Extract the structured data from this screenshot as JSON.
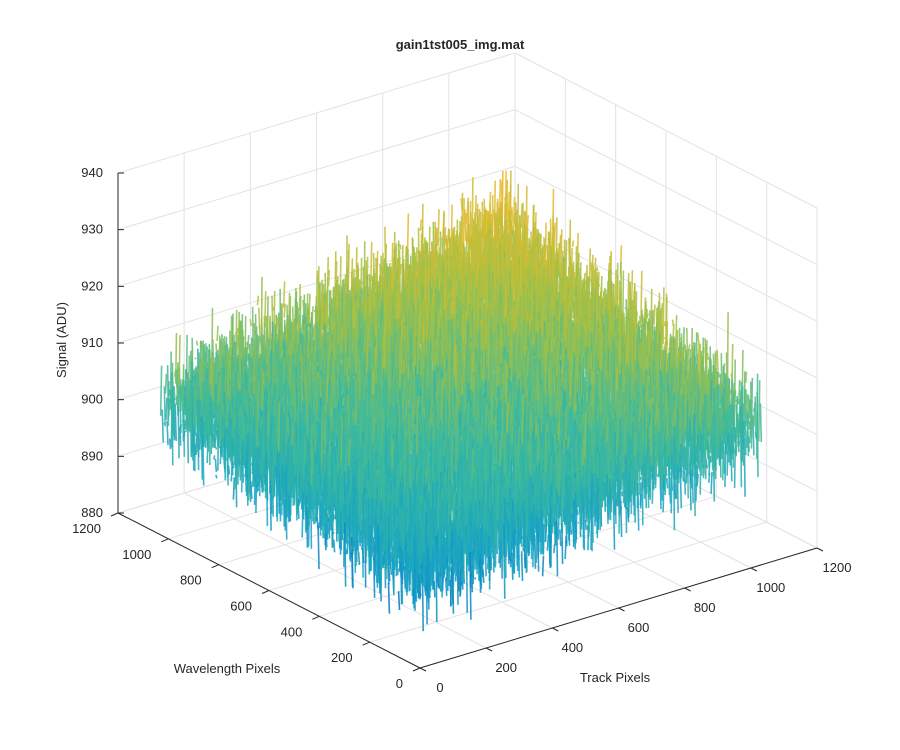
{
  "chart_data": {
    "type": "surface",
    "title": "gain1tst005_img.mat",
    "xlabel": "Track Pixels",
    "ylabel": "Wavelength Pixels",
    "zlabel": "Signal (ADU)",
    "xlim": [
      0,
      1200
    ],
    "ylim": [
      0,
      1200
    ],
    "zlim": [
      880,
      940
    ],
    "xticks": [
      "0",
      "200",
      "400",
      "600",
      "800",
      "1000",
      "1200"
    ],
    "yticks": [
      "0",
      "200",
      "400",
      "600",
      "800",
      "1000",
      "1200"
    ],
    "zticks": [
      "880",
      "890",
      "900",
      "910",
      "920",
      "930",
      "940"
    ],
    "grid": true,
    "surface": {
      "x_extent": [
        0,
        1024
      ],
      "y_extent": [
        0,
        1024
      ],
      "mean_signal": 905,
      "corner_signal": {
        "x0_y0": 897,
        "xmax_y0": 905,
        "x0_ymax": 904,
        "xmax_ymax": 916
      },
      "noise_range": [
        -12,
        12
      ],
      "colormap": [
        "#0072bd",
        "#15a2c6",
        "#3dba9d",
        "#a8c042",
        "#ecb92c",
        "#f9d81b"
      ]
    }
  }
}
